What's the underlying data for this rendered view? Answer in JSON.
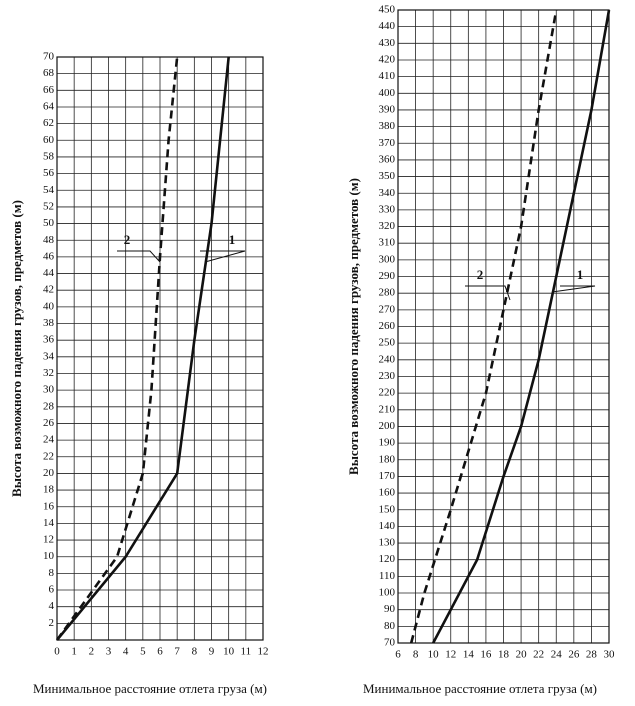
{
  "chart_data": [
    {
      "type": "line",
      "y_label": "Высота возможного падения грузов, предметов (м)",
      "x_label": "Минимальное расстояние отлета груза (м)",
      "xlim": [
        0,
        12
      ],
      "xticks": [
        0,
        1,
        2,
        3,
        4,
        5,
        6,
        7,
        8,
        9,
        10,
        11,
        12
      ],
      "ylim": [
        0,
        70
      ],
      "yticks": [
        2,
        4,
        6,
        8,
        10,
        12,
        14,
        16,
        18,
        20,
        22,
        24,
        26,
        28,
        30,
        32,
        34,
        36,
        38,
        40,
        42,
        44,
        46,
        48,
        50,
        52,
        54,
        56,
        58,
        60,
        62,
        64,
        66,
        68,
        70
      ],
      "grid": true,
      "series": [
        {
          "name": "1",
          "color": "#111111",
          "style": "solid",
          "x": [
            0,
            4,
            7,
            8,
            9,
            10
          ],
          "values": [
            0,
            10,
            20,
            36,
            50,
            70
          ]
        },
        {
          "name": "2",
          "color": "#111111",
          "style": "dashed",
          "x": [
            0,
            3.5,
            5,
            5.5,
            6,
            6.5,
            7
          ],
          "values": [
            0,
            10,
            20,
            30,
            46,
            60,
            70
          ]
        }
      ]
    },
    {
      "type": "line",
      "y_label": "Высота возможного падения грузов, предметов (м)",
      "x_label": "Минимальное расстояние отлета груза (м)",
      "xlim": [
        6,
        30
      ],
      "xticks": [
        6,
        8,
        10,
        12,
        14,
        16,
        18,
        20,
        22,
        24,
        26,
        28,
        30
      ],
      "ylim": [
        70,
        450
      ],
      "yticks": [
        70,
        80,
        90,
        100,
        110,
        120,
        130,
        140,
        150,
        160,
        170,
        180,
        190,
        200,
        210,
        220,
        230,
        240,
        250,
        260,
        270,
        280,
        290,
        300,
        310,
        320,
        330,
        340,
        350,
        360,
        370,
        380,
        390,
        400,
        410,
        420,
        430,
        440,
        450
      ],
      "grid": true,
      "series": [
        {
          "name": "1",
          "color": "#111111",
          "style": "solid",
          "x": [
            10,
            15,
            18,
            20,
            22,
            24,
            26,
            28,
            30
          ],
          "values": [
            70,
            120,
            170,
            200,
            240,
            290,
            340,
            390,
            450
          ]
        },
        {
          "name": "2",
          "color": "#111111",
          "style": "dashed",
          "x": [
            7.5,
            9,
            12,
            16,
            18,
            20,
            22,
            24
          ],
          "values": [
            70,
            100,
            150,
            220,
            270,
            320,
            390,
            450
          ]
        }
      ]
    }
  ]
}
